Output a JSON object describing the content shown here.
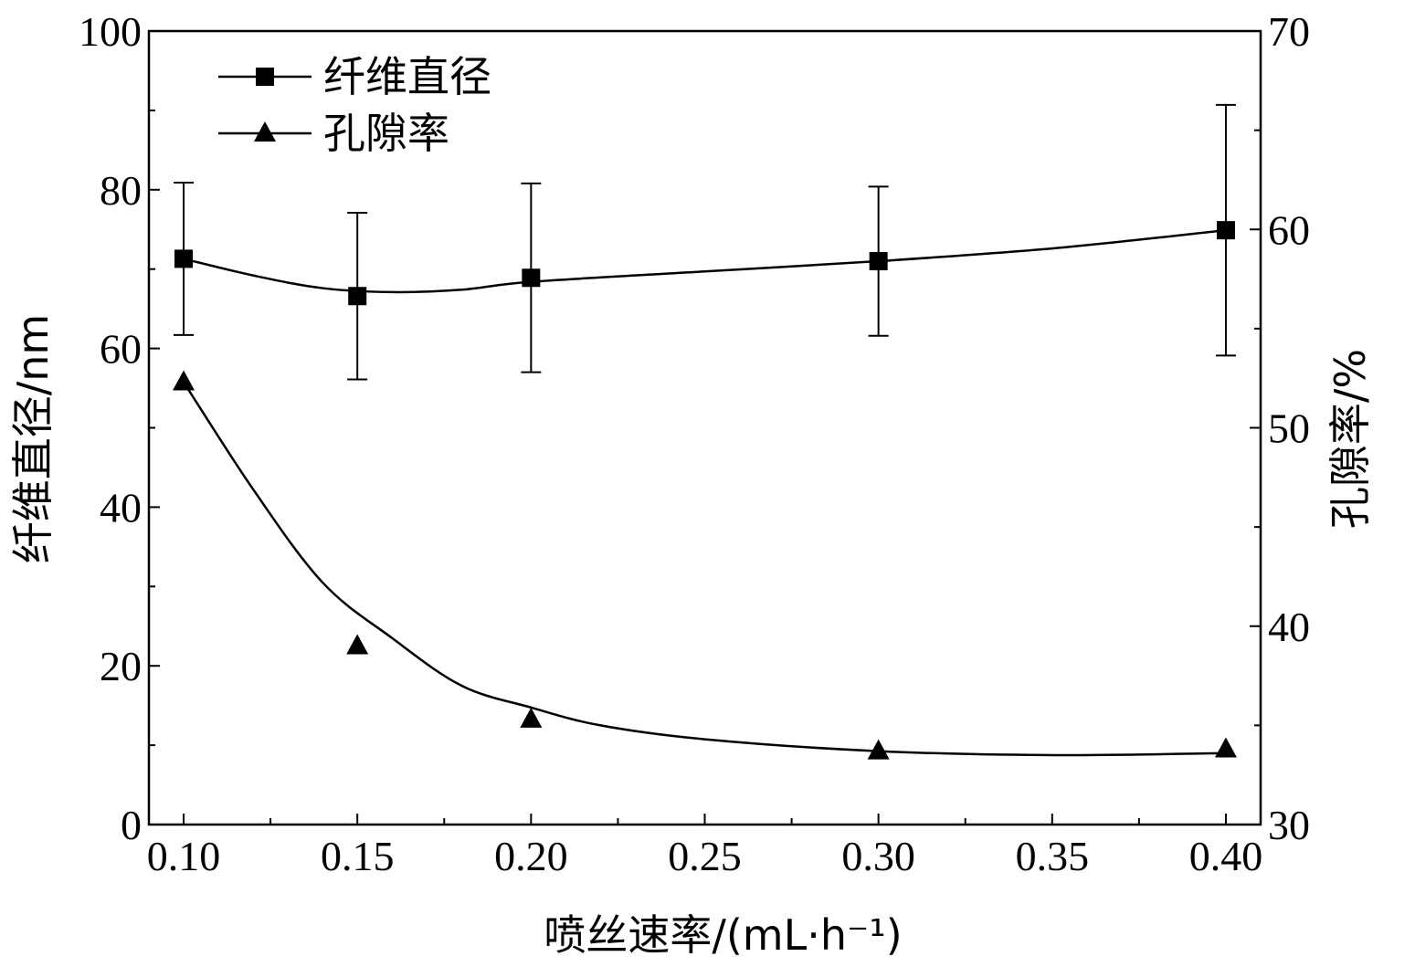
{
  "chart_data": {
    "type": "line",
    "x": [
      0.1,
      0.15,
      0.2,
      0.3,
      0.4
    ],
    "x_tick_labels": [
      "0.10",
      "0.15",
      "0.20",
      "0.25",
      "0.30",
      "0.35",
      "0.40"
    ],
    "x_ticks": [
      0.1,
      0.15,
      0.2,
      0.25,
      0.3,
      0.35,
      0.4
    ],
    "xlim": [
      0.09,
      0.41
    ],
    "xlabel": "喷丝速率/(mL·h⁻¹)",
    "ylabel_left": "纤维直径/nm",
    "ylabel_right": "孔隙率/%",
    "ylim_left": [
      0,
      100
    ],
    "ylim_right": [
      30,
      70
    ],
    "y_left_ticks": [
      0,
      20,
      40,
      60,
      80,
      100
    ],
    "y_left_tick_labels": [
      "0",
      "20",
      "40",
      "60",
      "80",
      "100"
    ],
    "y_right_ticks": [
      30,
      40,
      50,
      60,
      70
    ],
    "y_right_tick_labels": [
      "30",
      "40",
      "50",
      "60",
      "70"
    ],
    "legend_position": "top-left",
    "grid": false,
    "series": [
      {
        "name": "纤维直径",
        "axis": "left",
        "marker": "square",
        "values": [
          71.3,
          66.6,
          68.9,
          71.0,
          74.9
        ],
        "error": [
          9.6,
          10.5,
          11.9,
          9.4,
          15.8
        ],
        "curve": [
          [
            0.1,
            71.3
          ],
          [
            0.12,
            69.2
          ],
          [
            0.14,
            67.6
          ],
          [
            0.16,
            67.1
          ],
          [
            0.18,
            67.4
          ],
          [
            0.2,
            68.4
          ],
          [
            0.25,
            69.7
          ],
          [
            0.3,
            71.0
          ],
          [
            0.35,
            72.6
          ],
          [
            0.4,
            74.9
          ]
        ]
      },
      {
        "name": "孔隙率",
        "axis": "right",
        "marker": "triangle",
        "values": [
          52.3,
          39.0,
          35.3,
          33.7,
          33.8
        ],
        "curve": [
          [
            0.1,
            52.3
          ],
          [
            0.12,
            46.9
          ],
          [
            0.14,
            42.2
          ],
          [
            0.16,
            39.4
          ],
          [
            0.18,
            37.0
          ],
          [
            0.2,
            35.9
          ],
          [
            0.22,
            35.0
          ],
          [
            0.25,
            34.3
          ],
          [
            0.3,
            33.7
          ],
          [
            0.35,
            33.5
          ],
          [
            0.4,
            33.6
          ]
        ]
      }
    ]
  }
}
